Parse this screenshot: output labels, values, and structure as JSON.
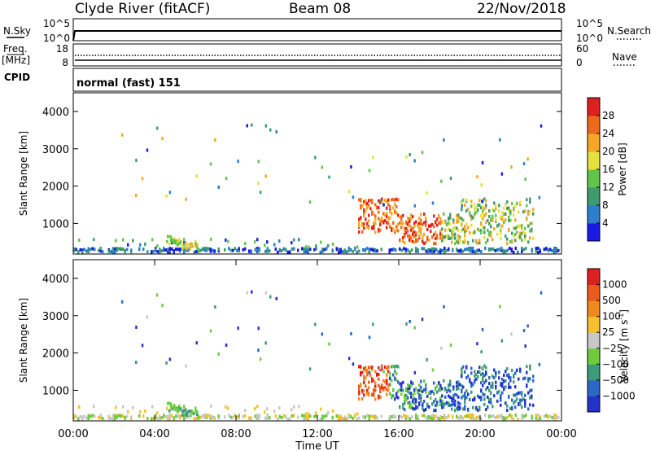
{
  "header": {
    "title": "Clyde River (fitACF)",
    "beam": "Beam 08",
    "date": "22/Nov/2018"
  },
  "top_panels": {
    "nsky": {
      "left_label": "N.Sky",
      "right_label": "N.Search",
      "left_ticks": [
        "10^5",
        "10^0"
      ],
      "right_ticks": [
        "10^5",
        "10^0"
      ]
    },
    "freq": {
      "left_label_line1": "Freq.",
      "left_label_line2": "[MHz]",
      "right_label": "Nave",
      "left_ticks": [
        "18",
        "8"
      ],
      "right_ticks": [
        "60",
        "0"
      ]
    },
    "cpid": {
      "left_label": "CPID",
      "text": "normal (fast) 151"
    }
  },
  "chart_data": [
    {
      "type": "heatmap",
      "name": "power",
      "ylabel": "Slant Range [km]",
      "y_ticks": [
        "4000",
        "3000",
        "2000",
        "1000"
      ],
      "ylim": [
        180,
        4500
      ],
      "xlim": [
        0,
        24
      ],
      "colorbar": {
        "label": "Power [dB]",
        "ticks": [
          "28",
          "24",
          "20",
          "16",
          "12",
          "8",
          "4"
        ],
        "range": [
          0,
          32
        ],
        "colors": [
          "#1a1ae6",
          "#2a7fcf",
          "#3f9a6e",
          "#60c64a",
          "#e6e03a",
          "#f5a623",
          "#ee6a1a",
          "#e01f1f"
        ]
      }
    },
    {
      "type": "heatmap",
      "name": "velocity",
      "ylabel": "Slant Range [km]",
      "y_ticks": [
        "4000",
        "3000",
        "2000",
        "1000"
      ],
      "ylim": [
        180,
        4500
      ],
      "xlim": [
        0,
        24
      ],
      "xlabel": "Time UT",
      "x_ticks": [
        "00:00",
        "04:00",
        "08:00",
        "12:00",
        "16:00",
        "20:00",
        "00:00"
      ],
      "colorbar": {
        "label": "Velocity [m s",
        "label_sup": "-1",
        "label_end": "]",
        "ticks": [
          "1000",
          "500",
          "100",
          "25",
          "−25",
          "−100",
          "−500",
          "−1000"
        ],
        "colors": [
          "#2233cc",
          "#2a67c9",
          "#3d9a7a",
          "#6ccc3a",
          "#c8c8c8",
          "#f5c02a",
          "#f08a1a",
          "#ee5a1a",
          "#e01f1f"
        ]
      }
    }
  ]
}
